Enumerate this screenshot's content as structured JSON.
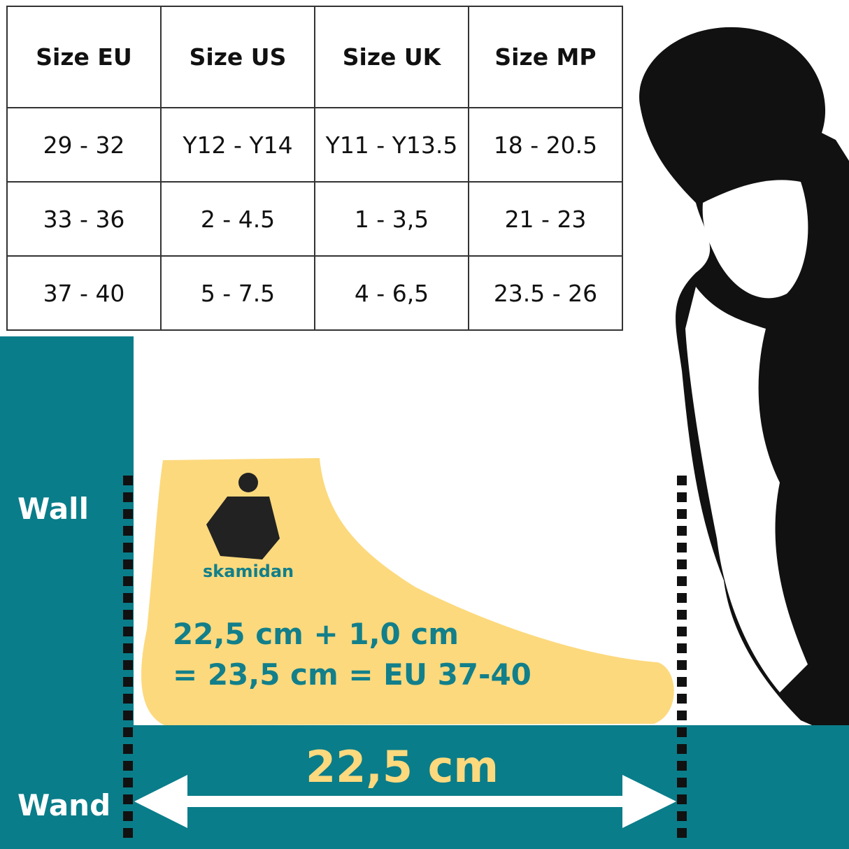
{
  "table": {
    "headers": [
      "Size EU",
      "Size US",
      "Size UK",
      "Size MP"
    ],
    "rows": [
      [
        "29 - 32",
        "Y12 - Y14",
        "Y11 - Y13.5",
        "18 - 20.5"
      ],
      [
        "33 - 36",
        "2 - 4.5",
        "1 - 3,5",
        "21 - 23"
      ],
      [
        "37 - 40",
        "5 - 7.5",
        "4 - 6,5",
        "23.5 - 26"
      ]
    ]
  },
  "labels": {
    "wall": "Wall",
    "wand": "Wand"
  },
  "foot": {
    "brand": "skamidan",
    "formula_line1": "22,5 cm + 1,0 cm",
    "formula_line2": "= 23,5 cm = EU 37-40"
  },
  "measurement": "22,5 cm",
  "colors": {
    "teal": "#0a7d8a",
    "foot": "#fcd97d",
    "text_teal": "#127f8a"
  }
}
